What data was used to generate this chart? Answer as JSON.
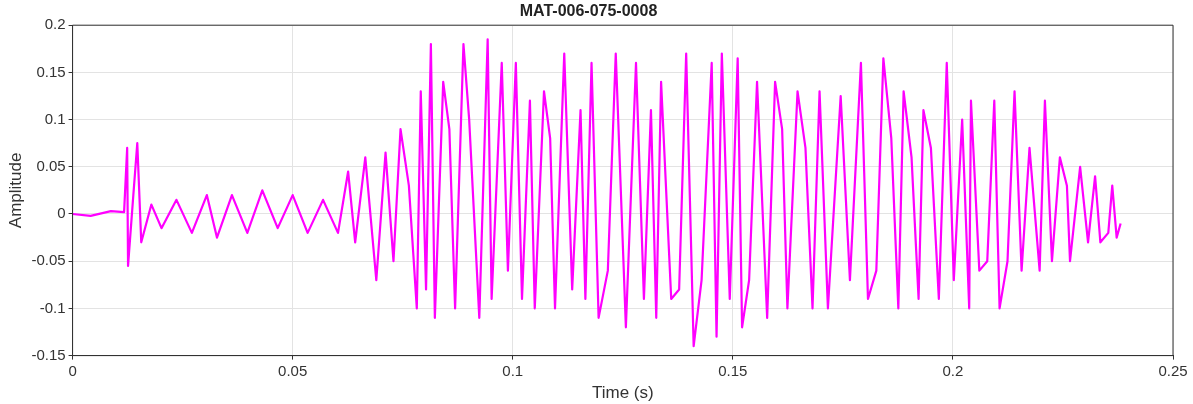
{
  "chart_data": {
    "type": "line",
    "title": "MAT-006-075-0008",
    "xlabel": "Time (s)",
    "ylabel": "Amplitude",
    "x": [
      0,
      0.0041,
      0.0087,
      0.0117,
      0.0124,
      0.0126,
      0.0138,
      0.0147,
      0.0156,
      0.0179,
      0.0202,
      0.0236,
      0.0271,
      0.0305,
      0.0328,
      0.0362,
      0.0397,
      0.0431,
      0.0466,
      0.05,
      0.0534,
      0.0569,
      0.0603,
      0.0626,
      0.0642,
      0.0665,
      0.069,
      0.0711,
      0.0729,
      0.0745,
      0.0764,
      0.0782,
      0.0791,
      0.0803,
      0.0814,
      0.0823,
      0.0842,
      0.0856,
      0.0869,
      0.0888,
      0.0901,
      0.0924,
      0.0943,
      0.0952,
      0.0975,
      0.0989,
      0.1007,
      0.1021,
      0.1039,
      0.105,
      0.1071,
      0.1085,
      0.1096,
      0.1117,
      0.1135,
      0.1154,
      0.1165,
      0.1179,
      0.1195,
      0.1216,
      0.1234,
      0.1257,
      0.128,
      0.1298,
      0.1314,
      0.1326,
      0.1337,
      0.136,
      0.1378,
      0.1394,
      0.1411,
      0.1429,
      0.1452,
      0.1463,
      0.1475,
      0.1493,
      0.1511,
      0.1521,
      0.1537,
      0.1555,
      0.1578,
      0.1596,
      0.1612,
      0.1624,
      0.1647,
      0.1665,
      0.1681,
      0.1697,
      0.1716,
      0.1745,
      0.1766,
      0.1791,
      0.1807,
      0.1826,
      0.1842,
      0.186,
      0.1876,
      0.1888,
      0.1906,
      0.1922,
      0.1933,
      0.195,
      0.1968,
      0.1986,
      0.2002,
      0.2021,
      0.2037,
      0.2041,
      0.206,
      0.2078,
      0.2094,
      0.2106,
      0.2124,
      0.214,
      0.2156,
      0.2174,
      0.2197,
      0.2209,
      0.2225,
      0.2243,
      0.2259,
      0.2266,
      0.2289,
      0.2307,
      0.2323,
      0.2335,
      0.2353,
      0.2362,
      0.2372,
      0.2381
    ],
    "series": [
      {
        "color": "#ff00ff",
        "values": [
          0,
          -0.002,
          0.003,
          0.002,
          0.07,
          -0.055,
          0.02,
          0.075,
          -0.03,
          0.01,
          -0.015,
          0.015,
          -0.02,
          0.02,
          -0.025,
          0.02,
          -0.02,
          0.025,
          -0.015,
          0.02,
          -0.02,
          0.015,
          -0.02,
          0.045,
          -0.03,
          0.06,
          -0.07,
          0.065,
          -0.05,
          0.09,
          0.03,
          -0.1,
          0.13,
          -0.08,
          0.18,
          -0.11,
          0.14,
          0.09,
          -0.1,
          0.18,
          0.1,
          -0.11,
          0.185,
          -0.09,
          0.16,
          -0.06,
          0.16,
          -0.09,
          0.12,
          -0.1,
          0.13,
          0.08,
          -0.1,
          0.17,
          -0.08,
          0.11,
          -0.09,
          0.16,
          -0.11,
          -0.06,
          0.17,
          -0.12,
          0.16,
          -0.09,
          0.11,
          -0.11,
          0.14,
          -0.09,
          -0.08,
          0.17,
          -0.14,
          -0.07,
          0.16,
          -0.13,
          0.17,
          -0.09,
          0.165,
          -0.12,
          -0.07,
          0.14,
          -0.11,
          0.14,
          0.09,
          -0.1,
          0.13,
          0.07,
          -0.1,
          0.13,
          -0.1,
          0.125,
          -0.07,
          0.16,
          -0.09,
          -0.06,
          0.165,
          0.08,
          -0.1,
          0.13,
          0.06,
          -0.09,
          0.11,
          0.07,
          -0.09,
          0.16,
          -0.07,
          0.1,
          -0.1,
          0.12,
          -0.06,
          -0.05,
          0.12,
          -0.1,
          -0.05,
          0.13,
          -0.06,
          0.07,
          -0.06,
          0.12,
          -0.05,
          0.06,
          0.03,
          -0.05,
          0.05,
          -0.03,
          0.04,
          -0.03,
          -0.02,
          0.03,
          -0.025,
          -0.01
        ]
      }
    ],
    "xlim": [
      0,
      0.25
    ],
    "xticks": [
      0,
      0.05,
      0.1,
      0.15,
      0.2,
      0.25
    ],
    "ylim": [
      -0.15,
      0.2
    ],
    "yticks": [
      -0.15,
      -0.1,
      -0.05,
      0,
      0.05,
      0.1,
      0.15,
      0.2
    ],
    "grid": true,
    "legend": false,
    "marker": "none",
    "line_style": "solid"
  }
}
